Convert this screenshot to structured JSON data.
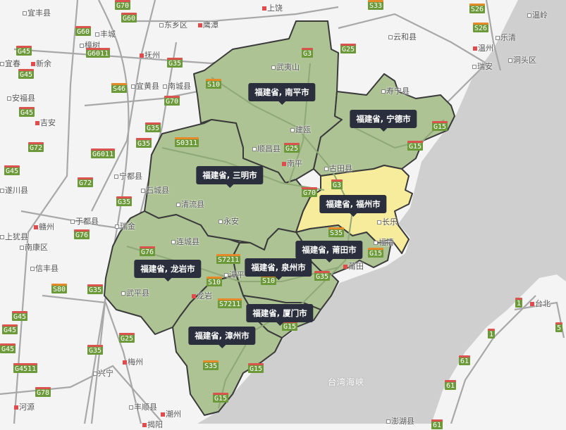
{
  "map": {
    "colors": {
      "land": "#f4f4f4",
      "sea": "#cfcfcf",
      "region": "#adc394",
      "highlight": "#f6ec9c",
      "border": "#3a3a3a",
      "tooltip": "#2b2f3d"
    },
    "highlighted_region": "福建省, 福州市",
    "regions": [
      {
        "id": "nanping",
        "label": "福建省, 南平市"
      },
      {
        "id": "ningde",
        "label": "福建省, 宁德市"
      },
      {
        "id": "sanming",
        "label": "福建省, 三明市"
      },
      {
        "id": "fuzhou",
        "label": "福建省, 福州市"
      },
      {
        "id": "putian",
        "label": "福建省, 莆田市"
      },
      {
        "id": "longyan",
        "label": "福建省, 龙岩市"
      },
      {
        "id": "quanzhou",
        "label": "福建省, 泉州市"
      },
      {
        "id": "xiamen",
        "label": "福建省, 厦门市"
      },
      {
        "id": "zhangzhou",
        "label": "福建省, 漳州市"
      }
    ],
    "places": [
      "宜丰县",
      "上饶",
      "东乡区",
      "鹰潭",
      "丰城",
      "樟树",
      "抚州",
      "宜春",
      "新余",
      "宜黄县",
      "南城县",
      "安福县",
      "吉安",
      "云和县",
      "温岭",
      "乐清",
      "温州",
      "瑞安",
      "洞头区",
      "寿宁县",
      "武夷山",
      "顺昌县",
      "建瓯",
      "南平",
      "古田县",
      "宁都县",
      "石城县",
      "清流县",
      "遂川县",
      "于都县",
      "瑞金",
      "赣州",
      "上犹县",
      "南康区",
      "永安",
      "连城县",
      "信丰县",
      "武平县",
      "龙岩",
      "漳平",
      "梅州",
      "兴宁",
      "丰顺县",
      "潮州",
      "揭阳",
      "河源",
      "台北",
      "澎湖县",
      "福清",
      "长乐",
      "莆田"
    ],
    "roads": [
      "G70",
      "G60",
      "G60",
      "G6011",
      "G45",
      "G45",
      "G35",
      "S46",
      "G70",
      "G45",
      "G35",
      "G35",
      "G72",
      "G6011",
      "G45",
      "G72",
      "G35",
      "S10",
      "S0311",
      "G3",
      "G25",
      "G25",
      "G70",
      "G3",
      "G15",
      "G15",
      "S33",
      "S26",
      "S26",
      "G76",
      "G76",
      "S7211",
      "S10",
      "S7211",
      "S10",
      "S80",
      "G35",
      "G45",
      "G45",
      "G45",
      "G25",
      "G35",
      "G4511",
      "G78",
      "S35",
      "G15",
      "G15",
      "G15",
      "S35",
      "G15",
      "G35",
      "1",
      "1",
      "5",
      "61",
      "61",
      "61"
    ],
    "sea_labels": [
      "台湾海峡"
    ]
  }
}
